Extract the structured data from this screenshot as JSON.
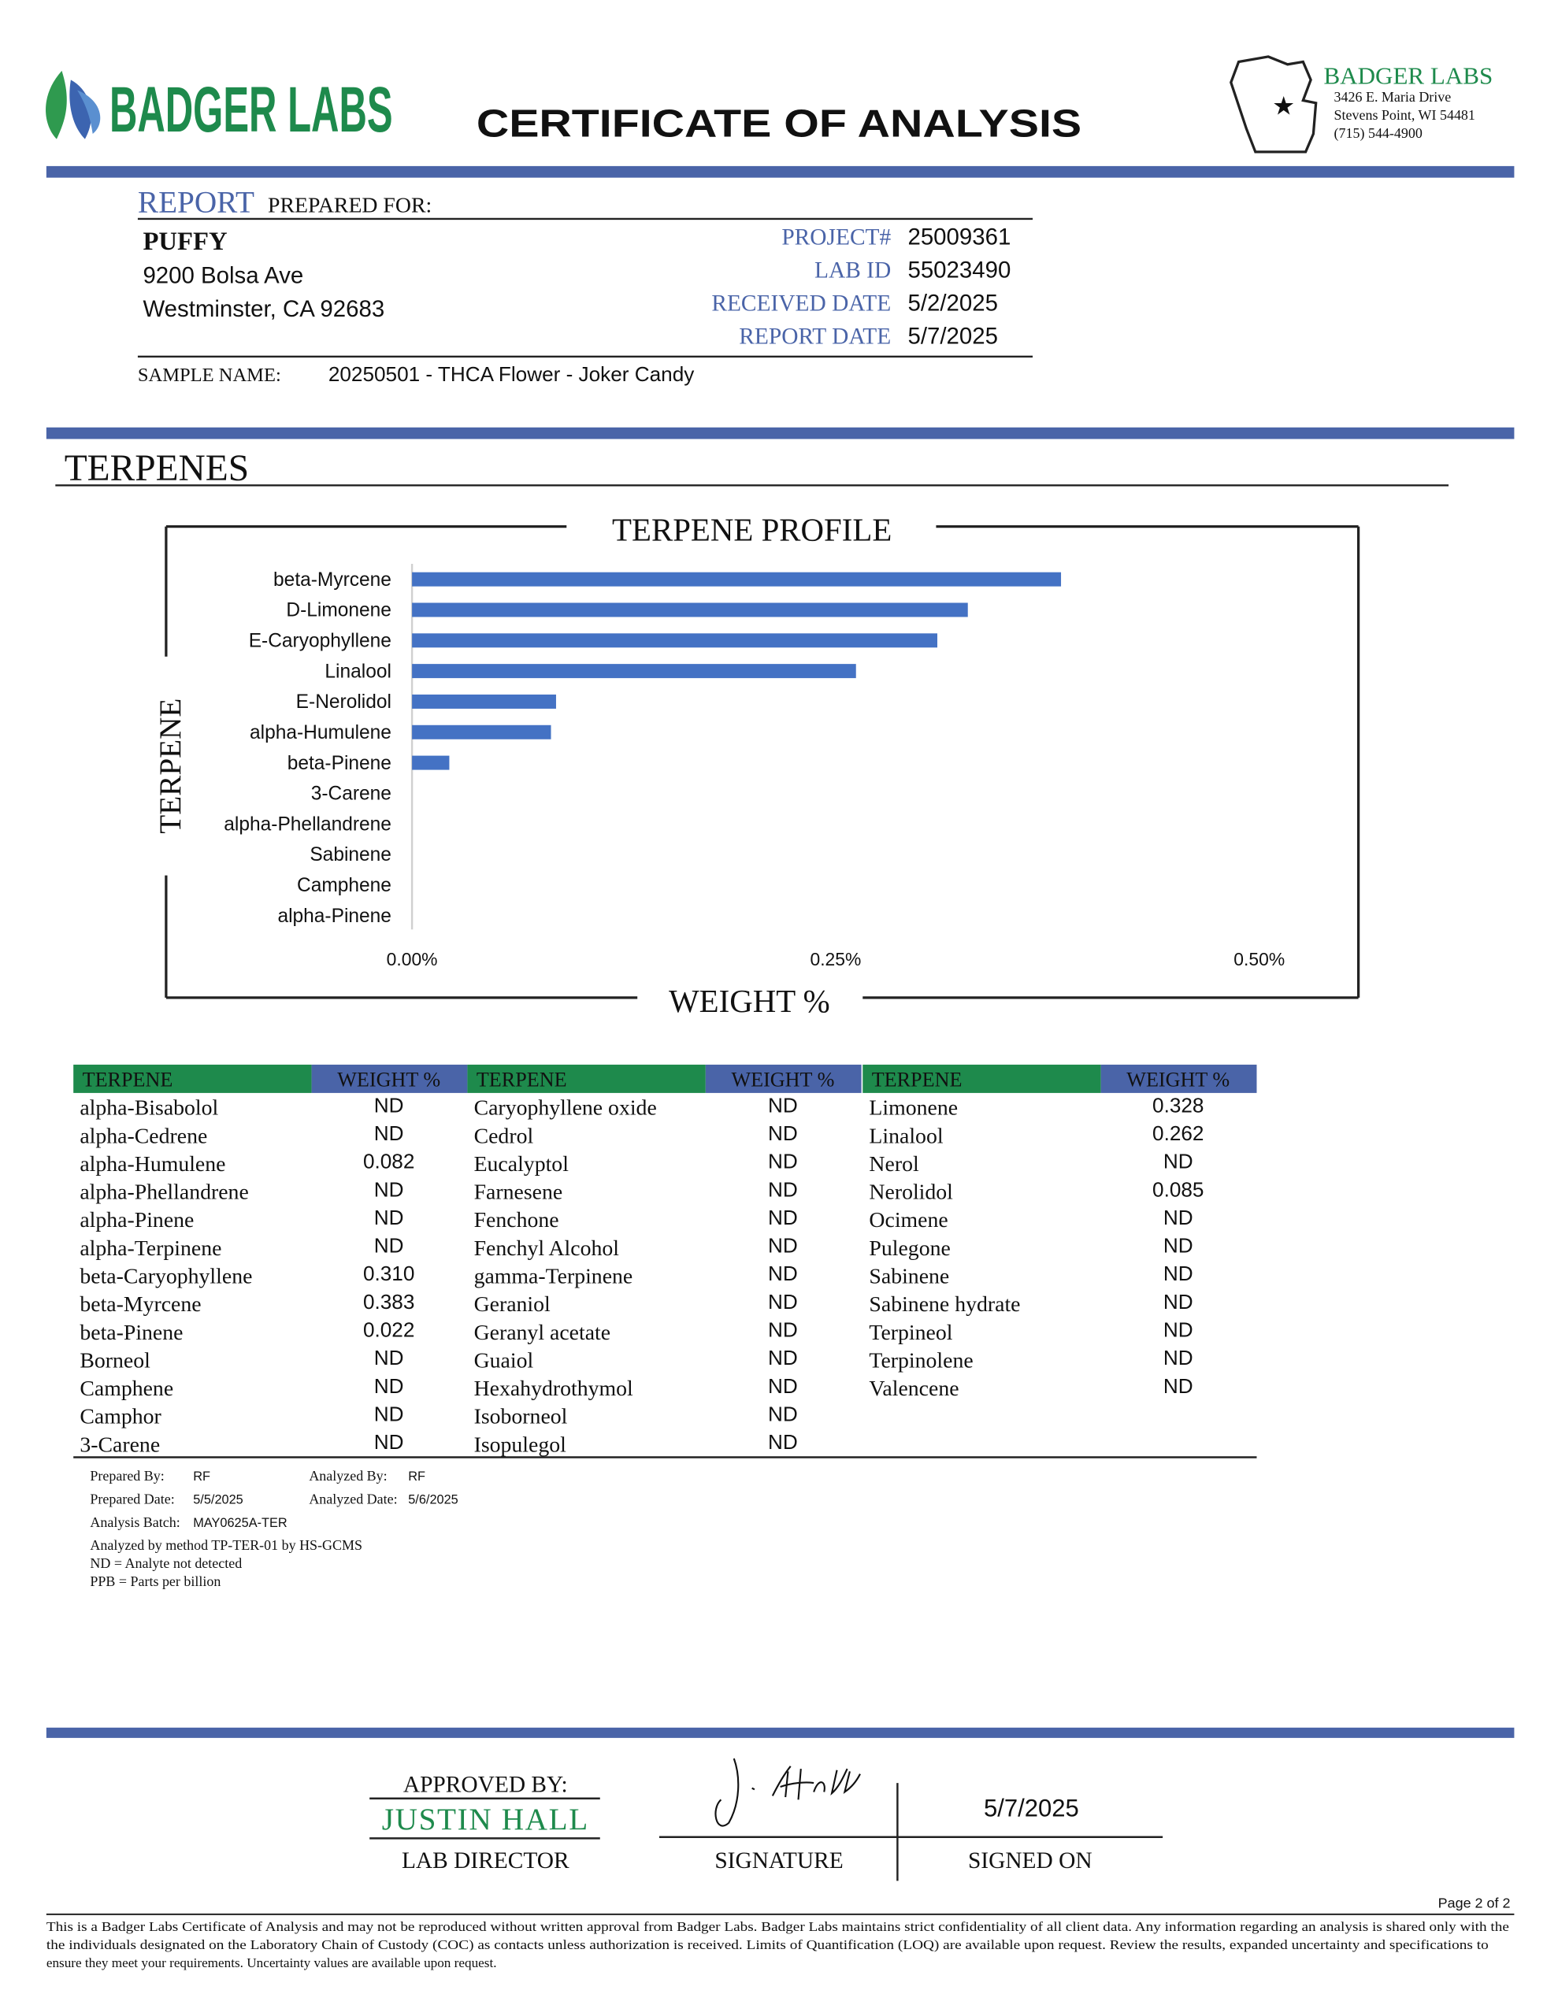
{
  "header": {
    "logo_text": "BADGER LABS",
    "title": "CERTIFICATE OF ANALYSIS",
    "lab_name": "BADGER LABS",
    "lab_address": [
      "3426 E. Maria Drive",
      "Stevens Point, WI 54481",
      "(715) 544-4900"
    ]
  },
  "report": {
    "label": "REPORT",
    "label_rest": "PREPARED FOR:",
    "client": "PUFFY",
    "address": [
      "9200 Bolsa Ave",
      "Westminster, CA 92683"
    ],
    "fields": [
      {
        "label": "PROJECT#",
        "value": "25009361"
      },
      {
        "label": "LAB ID",
        "value": "55023490"
      },
      {
        "label": "RECEIVED DATE",
        "value": "5/2/2025"
      },
      {
        "label": "REPORT DATE",
        "value": "5/7/2025"
      }
    ],
    "sample_label": "SAMPLE NAME:",
    "sample_name": "20250501 - THCA Flower - Joker Candy"
  },
  "section_title": "TERPENES",
  "chart_data": {
    "type": "bar",
    "orientation": "horizontal",
    "title": "TERPENE PROFILE",
    "y_label": "TERPENE",
    "x_label": "WEIGHT %",
    "color": "#4472c4",
    "categories": [
      "beta-Myrcene",
      "D-Limonene",
      "E-Caryophyllene",
      "Linalool",
      "E-Nerolidol",
      "alpha-Humulene",
      "beta-Pinene",
      "3-Carene",
      "alpha-Phellandrene",
      "Sabinene",
      "Camphene",
      "alpha-Pinene"
    ],
    "values": [
      0.383,
      0.328,
      0.31,
      0.262,
      0.085,
      0.082,
      0.022,
      0,
      0,
      0,
      0,
      0
    ],
    "xlim": [
      0,
      0.5
    ],
    "xticks": [
      {
        "value": 0,
        "label": "0.00%"
      },
      {
        "value": 0.25,
        "label": "0.25%"
      },
      {
        "value": 0.5,
        "label": "0.50%"
      }
    ]
  },
  "table": {
    "header": [
      "TERPENE",
      "WEIGHT %"
    ],
    "columns": [
      [
        [
          "alpha-Bisabolol",
          "ND"
        ],
        [
          "alpha-Cedrene",
          "ND"
        ],
        [
          "alpha-Humulene",
          "0.082"
        ],
        [
          "alpha-Phellandrene",
          "ND"
        ],
        [
          "alpha-Pinene",
          "ND"
        ],
        [
          "alpha-Terpinene",
          "ND"
        ],
        [
          "beta-Caryophyllene",
          "0.310"
        ],
        [
          "beta-Myrcene",
          "0.383"
        ],
        [
          "beta-Pinene",
          "0.022"
        ],
        [
          "Borneol",
          "ND"
        ],
        [
          "Camphene",
          "ND"
        ],
        [
          "Camphor",
          "ND"
        ],
        [
          "3-Carene",
          "ND"
        ]
      ],
      [
        [
          "Caryophyllene oxide",
          "ND"
        ],
        [
          "Cedrol",
          "ND"
        ],
        [
          "Eucalyptol",
          "ND"
        ],
        [
          "Farnesene",
          "ND"
        ],
        [
          "Fenchone",
          "ND"
        ],
        [
          "Fenchyl Alcohol",
          "ND"
        ],
        [
          "gamma-Terpinene",
          "ND"
        ],
        [
          "Geraniol",
          "ND"
        ],
        [
          "Geranyl acetate",
          "ND"
        ],
        [
          "Guaiol",
          "ND"
        ],
        [
          "Hexahydrothymol",
          "ND"
        ],
        [
          "Isoborneol",
          "ND"
        ],
        [
          "Isopulegol",
          "ND"
        ]
      ],
      [
        [
          "Limonene",
          "0.328"
        ],
        [
          "Linalool",
          "0.262"
        ],
        [
          "Nerol",
          "ND"
        ],
        [
          "Nerolidol",
          "0.085"
        ],
        [
          "Ocimene",
          "ND"
        ],
        [
          "Pulegone",
          "ND"
        ],
        [
          "Sabinene",
          "ND"
        ],
        [
          "Sabinene hydrate",
          "ND"
        ],
        [
          "Terpineol",
          "ND"
        ],
        [
          "Terpinolene",
          "ND"
        ],
        [
          "Valencene",
          "ND"
        ]
      ]
    ]
  },
  "analysis": {
    "prepared_by_label": "Prepared By:",
    "prepared_by": "RF",
    "analyzed_by_label": "Analyzed By:",
    "analyzed_by": "RF",
    "prepared_date_label": "Prepared Date:",
    "prepared_date": "5/5/2025",
    "analyzed_date_label": "Analyzed Date:",
    "analyzed_date": "5/6/2025",
    "batch_label": "Analysis Batch:",
    "batch": "MAY0625A-TER",
    "notes": [
      "Analyzed by method TP-TER-01 by HS-GCMS",
      "ND = Analyte not detected",
      "PPB = Parts per billion"
    ]
  },
  "approval": {
    "approved_label": "APPROVED BY:",
    "name": "JUSTIN HALL",
    "role": "LAB DIRECTOR",
    "signature_label": "SIGNATURE",
    "date": "5/7/2025",
    "date_label": "SIGNED ON"
  },
  "footer": {
    "page": "Page 2 of 2",
    "disclaimer": [
      "This is a Badger Labs Certificate of Analysis and may not be reproduced without written approval from Badger Labs. Badger Labs maintains strict confidentiality of all client data. Any information regarding an analysis is shared only with the",
      "the individuals designated on the Laboratory Chain of Custody (COC) as contacts unless authorization is received. Limits of Quantification (LOQ) are available upon request. Review the results, expanded uncertainty and specifications to",
      "ensure they meet your requirements. Uncertainty values are available upon request."
    ]
  }
}
